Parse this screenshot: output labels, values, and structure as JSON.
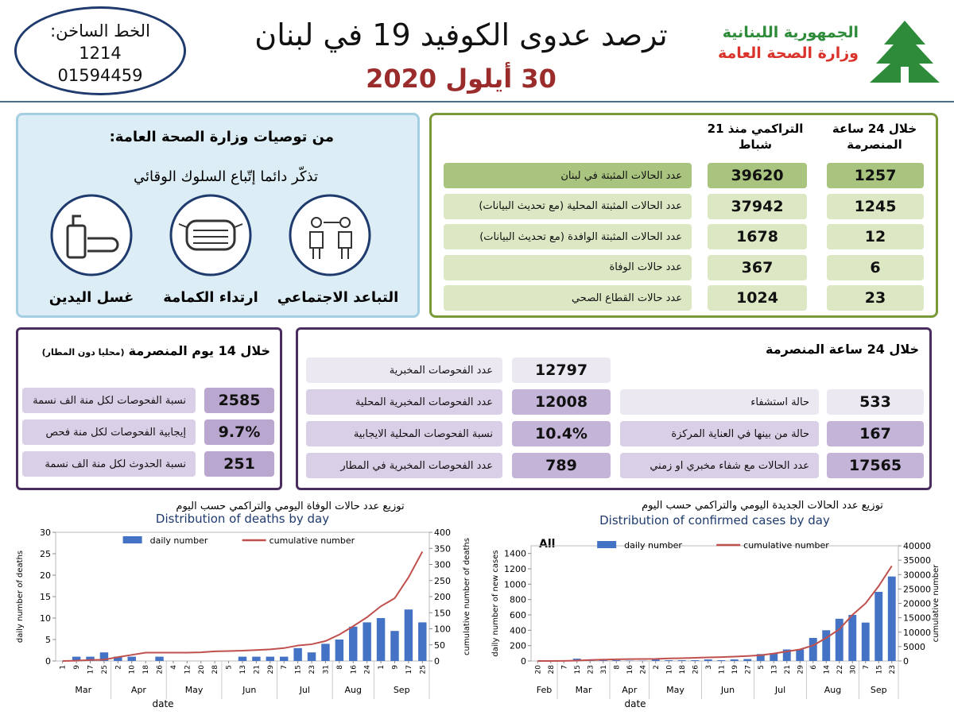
{
  "hotline": {
    "label": "الخط الساخن:",
    "numbers": [
      "1214",
      "01594459"
    ]
  },
  "header": {
    "title": "ترصد عدوى الكوفيد 19 في لبنان",
    "date": "30 أيلول 2020",
    "org": [
      "الجمهورية اللبنانية",
      "وزارة الصحة العامة"
    ]
  },
  "summary": {
    "headers": [
      "خلال 24 ساعة المنصرمة",
      "التراكمي منذ 21 شباط"
    ],
    "rows": [
      {
        "label": "عدد الحالات المثبتة في لبنان",
        "day": 1257,
        "total": 39620
      },
      {
        "label": "عدد الحالات المثبتة المحلية (مع تحديث البيانات)",
        "day": 1245,
        "total": 37942
      },
      {
        "label": "عدد الحالات المثبتة الوافدة (مع تحديث البيانات)",
        "day": 12,
        "total": 1678
      },
      {
        "label": "عدد حالات الوفاة",
        "day": 6,
        "total": 367
      },
      {
        "label": "عدد حالات القطاع الصحي",
        "day": 23,
        "total": 1024
      }
    ]
  },
  "advice": {
    "title": "من توصيات وزارة الصحة العامة:",
    "subtitle": "تذكّر دائما إتّباع السلوك الوقائي",
    "items": [
      "التباعد الاجتماعي",
      "ارتداء الكمامة",
      "غسل اليدين"
    ]
  },
  "last14": {
    "title": "خلال 14 يوم المنصرمة",
    "note": "(محليا دون المطار)",
    "rows": [
      {
        "label": "نسبة الفحوصات لكل منة الف نسمة",
        "value": 2585,
        "value_label": "2585"
      },
      {
        "label": "إيجابية الفحوصات لكل منة فحص",
        "value": 9.7,
        "value_label": "9.7%"
      },
      {
        "label": "نسبة الحدوث لكل منة الف نسمة",
        "value": 251,
        "value_label": "251"
      }
    ]
  },
  "last24": {
    "title": "خلال 24 ساعة المنصرمة",
    "tests": [
      {
        "label": "عدد الفحوصات المخبرية",
        "value": 12797,
        "value_label": "12797"
      },
      {
        "label": "عدد الفحوصات المخبرية المحلية",
        "value": 12008,
        "value_label": "12008"
      },
      {
        "label": "نسبة الفحوصات المحلية الايجابية",
        "value": 10.4,
        "value_label": "10.4%"
      },
      {
        "label": "عدد الفحوصات المخبرية في المطار",
        "value": 789,
        "value_label": "789"
      }
    ],
    "hospital": [
      {
        "label": "حالة استشفاء",
        "value": 533,
        "value_label": "533"
      },
      {
        "label": "حالة من بينها في العناية المركزة",
        "value": 167,
        "value_label": "167"
      },
      {
        "label": "عدد الحالات مع شفاء مخبري او زمني",
        "value": 17565,
        "value_label": "17565"
      }
    ]
  },
  "charts": [
    {
      "type": "bar-line",
      "title": "توزيع عدد حالات الوفاة اليومي والتراكمي حسب اليوم",
      "subtitle": "Distribution of deaths by day",
      "xlabel": "date",
      "ylabel": "daily number of deaths",
      "y2label": "cumulative number of deaths",
      "categories": [
        "1",
        "9",
        "17",
        "25",
        "2",
        "10",
        "18",
        "26",
        "4",
        "12",
        "20",
        "28",
        "5",
        "13",
        "21",
        "29",
        "7",
        "15",
        "23",
        "31",
        "8",
        "16",
        "24",
        "1",
        "9",
        "17",
        "25"
      ],
      "months": [
        "Mar",
        "Apr",
        "May",
        "Jun",
        "Jul",
        "Aug",
        "Sep"
      ],
      "series": [
        {
          "name": "daily number",
          "type": "bar",
          "color": "#4472c4",
          "values": [
            0,
            1,
            1,
            2,
            1,
            1,
            0,
            1,
            0,
            0,
            0,
            0,
            0,
            1,
            1,
            1,
            1,
            3,
            2,
            4,
            5,
            8,
            9,
            10,
            7,
            12,
            9
          ]
        },
        {
          "name": "cumulative number",
          "type": "line",
          "axis": "y2",
          "color": "#c0504d",
          "values": [
            0,
            1,
            3,
            4,
            12,
            19,
            26,
            26,
            26,
            26,
            27,
            30,
            31,
            32,
            34,
            36,
            40,
            48,
            52,
            62,
            82,
            108,
            136,
            170,
            195,
            260,
            340
          ]
        }
      ],
      "ylim": [
        0,
        30
      ],
      "yticks": [
        0,
        5,
        10,
        15,
        20,
        25,
        30
      ],
      "y2lim": [
        0,
        400
      ],
      "y2ticks": [
        0,
        50,
        100,
        150,
        200,
        250,
        300,
        350,
        400
      ]
    },
    {
      "type": "bar-line",
      "title": "توزيع عدد الحالات الجديدة اليومي والتراكمي حسب اليوم",
      "subtitle": "Distribution of confirmed cases by day",
      "annotation": "All",
      "xlabel": "date",
      "ylabel": "daily number of new cases",
      "y2label": "cumulative number",
      "categories": [
        "20",
        "28",
        "7",
        "15",
        "23",
        "31",
        "8",
        "16",
        "24",
        "2",
        "10",
        "18",
        "26",
        "3",
        "11",
        "19",
        "27",
        "5",
        "13",
        "21",
        "29",
        "6",
        "14",
        "22",
        "30",
        "7",
        "15",
        "23"
      ],
      "months": [
        "Feb",
        "Mar",
        "Apr",
        "May",
        "Jun",
        "Jul",
        "Aug",
        "Sep"
      ],
      "series": [
        {
          "name": "daily number",
          "type": "bar",
          "color": "#4472c4",
          "values": [
            0,
            2,
            10,
            30,
            20,
            15,
            10,
            5,
            4,
            20,
            10,
            10,
            10,
            20,
            10,
            20,
            25,
            90,
            100,
            150,
            150,
            300,
            400,
            550,
            600,
            500,
            900,
            1100
          ]
        },
        {
          "name": "cumulative number",
          "type": "line",
          "axis": "y2",
          "color": "#c0504d",
          "values": [
            0,
            2,
            40,
            150,
            330,
            470,
            575,
            660,
            700,
            730,
            880,
            950,
            1110,
            1240,
            1350,
            1510,
            1740,
            1990,
            2600,
            3300,
            4000,
            5400,
            8000,
            11000,
            16000,
            20000,
            26000,
            33000
          ]
        }
      ],
      "ylim": [
        0,
        1500
      ],
      "yticks": [
        0,
        200,
        400,
        600,
        800,
        1000,
        1200,
        1400
      ],
      "y2lim": [
        0,
        40000
      ],
      "y2ticks": [
        0,
        5000,
        10000,
        15000,
        20000,
        25000,
        30000,
        35000,
        40000
      ]
    }
  ]
}
